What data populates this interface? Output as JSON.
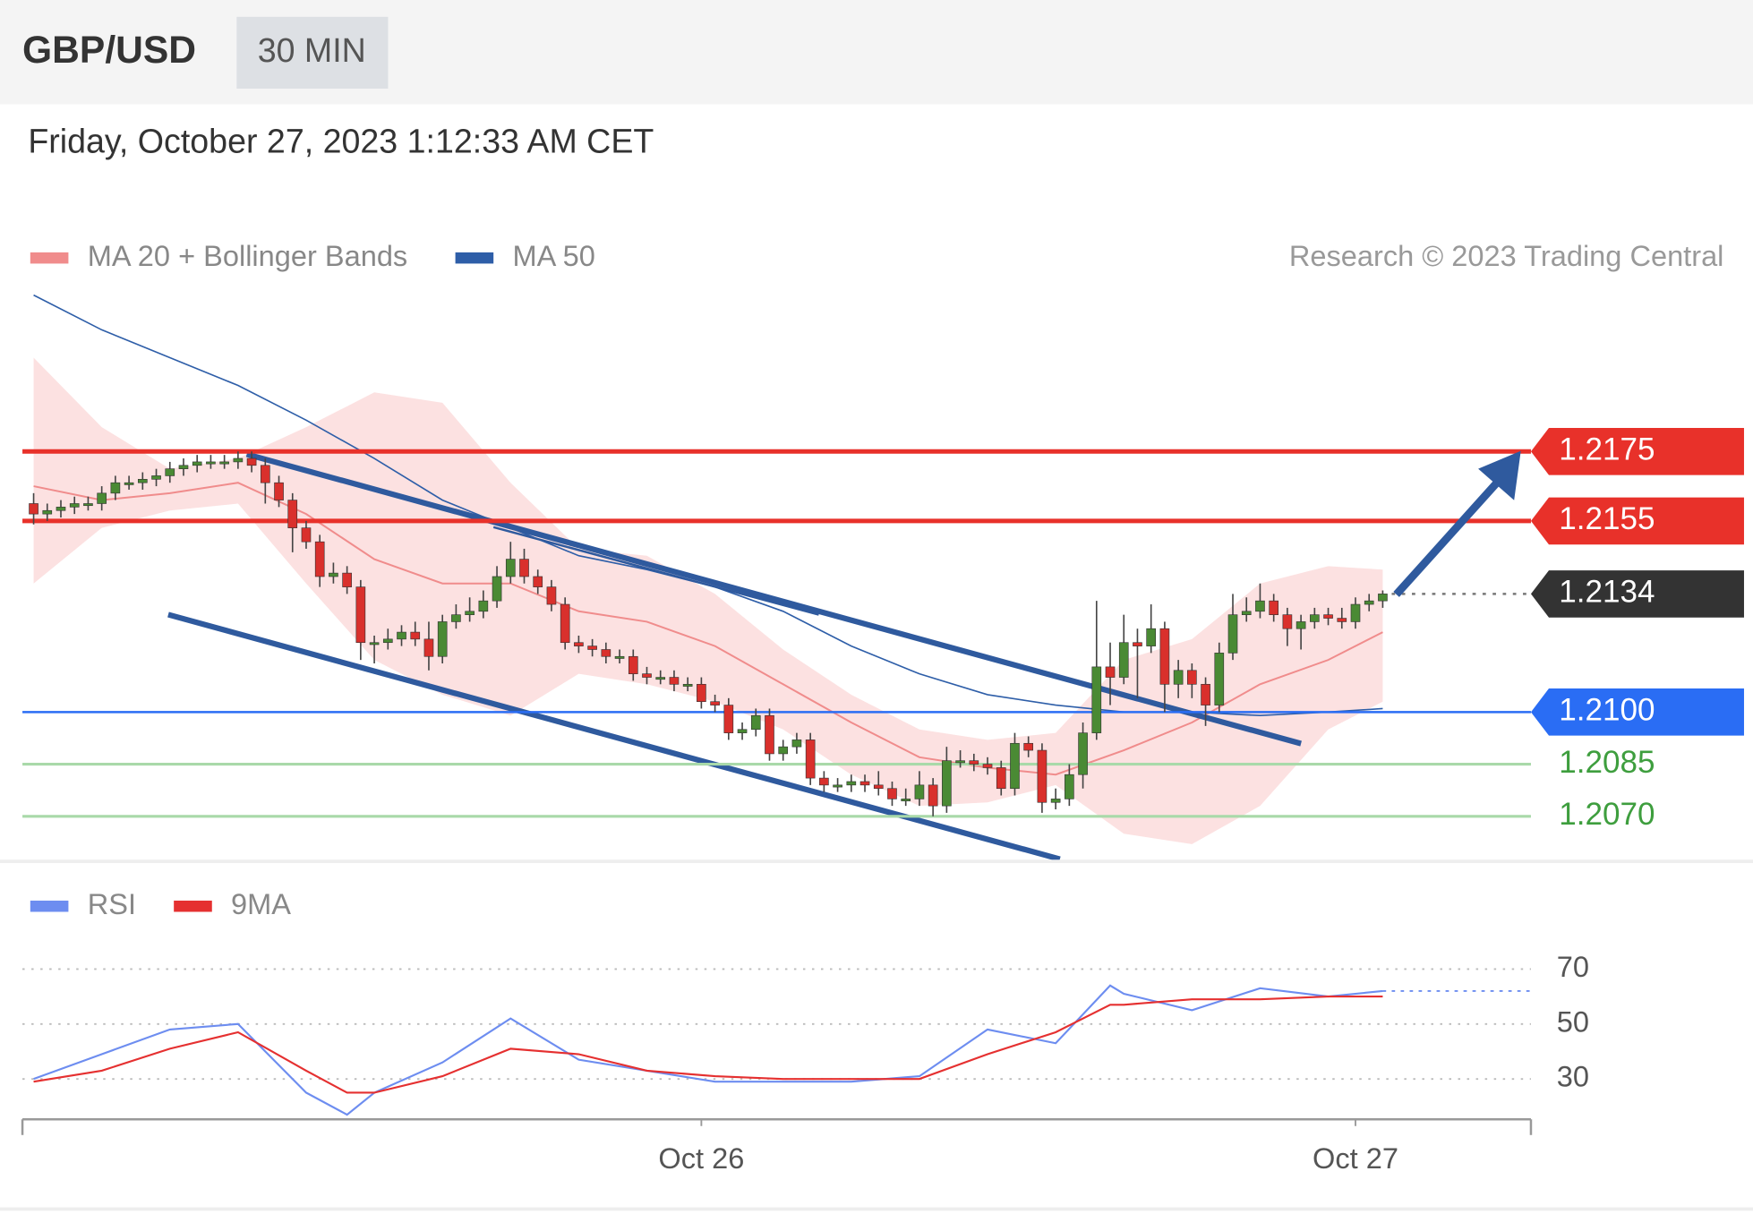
{
  "chart_data": [
    {
      "type": "candlestick",
      "title": "GBP/USD",
      "interval": "30 MIN",
      "subtitle": "Friday, October 27, 2023 1:12:33 AM CET",
      "source": "Research © 2023 Trading Central",
      "up_color": "#4a8a34",
      "down_color": "#d9302c",
      "xlim": [
        -0.5,
        110.5
      ],
      "ylim": [
        1.2058,
        1.2221
      ],
      "candles": [
        [
          1.216,
          1.2163,
          1.2154,
          1.2157
        ],
        [
          1.2157,
          1.216,
          1.2155,
          1.2158
        ],
        [
          1.2158,
          1.2161,
          1.2156,
          1.2159
        ],
        [
          1.2159,
          1.2162,
          1.2157,
          1.216
        ],
        [
          1.216,
          1.2162,
          1.2158,
          1.216
        ],
        [
          1.216,
          1.2165,
          1.2158,
          1.2163
        ],
        [
          1.2163,
          1.2168,
          1.2161,
          1.2166
        ],
        [
          1.2166,
          1.2168,
          1.2164,
          1.2166
        ],
        [
          1.2166,
          1.2169,
          1.2164,
          1.2167
        ],
        [
          1.2167,
          1.217,
          1.2165,
          1.2168
        ],
        [
          1.2168,
          1.2172,
          1.2166,
          1.217
        ],
        [
          1.217,
          1.2173,
          1.2168,
          1.2171
        ],
        [
          1.2171,
          1.2174,
          1.2169,
          1.2172
        ],
        [
          1.2172,
          1.2174,
          1.217,
          1.2172
        ],
        [
          1.2172,
          1.2174,
          1.217,
          1.2172
        ],
        [
          1.2172,
          1.2175,
          1.217,
          1.2173
        ],
        [
          1.2173,
          1.2175,
          1.2169,
          1.2171
        ],
        [
          1.2171,
          1.2173,
          1.216,
          1.2166
        ],
        [
          1.2166,
          1.2168,
          1.2159,
          1.2161
        ],
        [
          1.2161,
          1.2163,
          1.2146,
          1.2153
        ],
        [
          1.2153,
          1.2155,
          1.2147,
          1.2149
        ],
        [
          1.2149,
          1.2151,
          1.2136,
          1.2139
        ],
        [
          1.2139,
          1.2143,
          1.2137,
          1.214
        ],
        [
          1.214,
          1.2142,
          1.2134,
          1.2136
        ],
        [
          1.2136,
          1.2138,
          1.2115,
          1.212
        ],
        [
          1.212,
          1.2122,
          1.2114,
          1.212
        ],
        [
          1.212,
          1.2124,
          1.2118,
          1.2121
        ],
        [
          1.2121,
          1.2125,
          1.2119,
          1.2123
        ],
        [
          1.2123,
          1.2126,
          1.2119,
          1.2121
        ],
        [
          1.2121,
          1.2126,
          1.2112,
          1.2116
        ],
        [
          1.2116,
          1.2128,
          1.2114,
          1.2126
        ],
        [
          1.2126,
          1.2131,
          1.2124,
          1.2128
        ],
        [
          1.2128,
          1.2133,
          1.2126,
          1.2129
        ],
        [
          1.2129,
          1.2135,
          1.2127,
          1.2132
        ],
        [
          1.2132,
          1.2142,
          1.213,
          1.2139
        ],
        [
          1.2139,
          1.2149,
          1.2137,
          1.2144
        ],
        [
          1.2144,
          1.2147,
          1.2137,
          1.2139
        ],
        [
          1.2139,
          1.2141,
          1.2134,
          1.2136
        ],
        [
          1.2136,
          1.2138,
          1.2129,
          1.2131
        ],
        [
          1.2131,
          1.2133,
          1.2118,
          1.212
        ],
        [
          1.212,
          1.2122,
          1.2117,
          1.2119
        ],
        [
          1.2119,
          1.2121,
          1.2116,
          1.2118
        ],
        [
          1.2118,
          1.212,
          1.2114,
          1.2116
        ],
        [
          1.2116,
          1.2118,
          1.2114,
          1.2116
        ],
        [
          1.2116,
          1.2118,
          1.2109,
          1.2111
        ],
        [
          1.2111,
          1.2113,
          1.2108,
          1.211
        ],
        [
          1.211,
          1.2112,
          1.2108,
          1.211
        ],
        [
          1.211,
          1.2112,
          1.2106,
          1.2108
        ],
        [
          1.2108,
          1.211,
          1.2106,
          1.2108
        ],
        [
          1.2108,
          1.211,
          1.2101,
          1.2103
        ],
        [
          1.2103,
          1.2105,
          1.21,
          1.2102
        ],
        [
          1.2102,
          1.2104,
          1.2092,
          1.2094
        ],
        [
          1.2094,
          1.2097,
          1.2092,
          1.2095
        ],
        [
          1.2095,
          1.2101,
          1.2093,
          1.2099
        ],
        [
          1.2099,
          1.2101,
          1.2086,
          1.2088
        ],
        [
          1.2088,
          1.2092,
          1.2086,
          1.209
        ],
        [
          1.209,
          1.2094,
          1.2088,
          1.2092
        ],
        [
          1.2092,
          1.2094,
          1.2079,
          1.2081
        ],
        [
          1.2081,
          1.2083,
          1.2077,
          1.2079
        ],
        [
          1.2079,
          1.2081,
          1.2077,
          1.2079
        ],
        [
          1.2079,
          1.2082,
          1.2077,
          1.208
        ],
        [
          1.208,
          1.2082,
          1.2077,
          1.2079
        ],
        [
          1.2079,
          1.2083,
          1.2076,
          1.2078
        ],
        [
          1.2078,
          1.208,
          1.2073,
          1.2075
        ],
        [
          1.2075,
          1.2078,
          1.2073,
          1.2075
        ],
        [
          1.2075,
          1.2083,
          1.2073,
          1.2079
        ],
        [
          1.2079,
          1.2081,
          1.207,
          1.2073
        ],
        [
          1.2073,
          1.209,
          1.2071,
          1.2086
        ],
        [
          1.2086,
          1.2089,
          1.2084,
          1.2086
        ],
        [
          1.2086,
          1.2088,
          1.2083,
          1.2085
        ],
        [
          1.2085,
          1.2087,
          1.2082,
          1.2084
        ],
        [
          1.2084,
          1.2086,
          1.2076,
          1.2078
        ],
        [
          1.2078,
          1.2094,
          1.2076,
          1.2091
        ],
        [
          1.2091,
          1.2093,
          1.2087,
          1.2089
        ],
        [
          1.2089,
          1.2091,
          1.2071,
          1.2074
        ],
        [
          1.2074,
          1.2078,
          1.2072,
          1.2075
        ],
        [
          1.2075,
          1.2085,
          1.2073,
          1.2082
        ],
        [
          1.2082,
          1.2097,
          1.2078,
          1.2094
        ],
        [
          1.2094,
          1.2132,
          1.2092,
          1.2113
        ],
        [
          1.2113,
          1.212,
          1.2102,
          1.211
        ],
        [
          1.211,
          1.2128,
          1.2108,
          1.212
        ],
        [
          1.212,
          1.2124,
          1.2104,
          1.2119
        ],
        [
          1.2119,
          1.2131,
          1.2117,
          1.2124
        ],
        [
          1.2124,
          1.2126,
          1.21,
          1.2108
        ],
        [
          1.2108,
          1.2115,
          1.2104,
          1.2112
        ],
        [
          1.2112,
          1.2114,
          1.2104,
          1.2108
        ],
        [
          1.2108,
          1.211,
          1.2096,
          1.2102
        ],
        [
          1.2102,
          1.212,
          1.21,
          1.2117
        ],
        [
          1.2117,
          1.2134,
          1.2115,
          1.2128
        ],
        [
          1.2128,
          1.2133,
          1.2126,
          1.2129
        ],
        [
          1.2129,
          1.2137,
          1.2127,
          1.2132
        ],
        [
          1.2132,
          1.2134,
          1.2126,
          1.2128
        ],
        [
          1.2128,
          1.213,
          1.2119,
          1.2124
        ],
        [
          1.2124,
          1.2128,
          1.2118,
          1.2126
        ],
        [
          1.2126,
          1.213,
          1.2124,
          1.2128
        ],
        [
          1.2128,
          1.213,
          1.2125,
          1.2127
        ],
        [
          1.2127,
          1.213,
          1.2124,
          1.2126
        ],
        [
          1.2126,
          1.2133,
          1.2124,
          1.2131
        ],
        [
          1.2131,
          1.2134,
          1.2129,
          1.2132
        ],
        [
          1.2132,
          1.2135,
          1.213,
          1.2134
        ]
      ],
      "series": [
        {
          "name": "MA 20 + Bollinger Bands",
          "color": "#f08c8c",
          "band_color": "#fbdcdc",
          "x": [
            0,
            5,
            10,
            15,
            20,
            25,
            30,
            35,
            40,
            45,
            50,
            55,
            60,
            65,
            70,
            75,
            80,
            85,
            90,
            95,
            99
          ],
          "values": [
            1.2165,
            1.2161,
            1.2163,
            1.2166,
            1.2157,
            1.2144,
            1.2137,
            1.2137,
            1.2129,
            1.2126,
            1.2119,
            1.2108,
            1.2097,
            1.2087,
            1.2084,
            1.2082,
            1.2089,
            1.2097,
            1.2108,
            1.2115,
            1.2123
          ],
          "upper": [
            1.2202,
            1.2182,
            1.217,
            1.2173,
            1.2182,
            1.2192,
            1.2189,
            1.2166,
            1.2147,
            1.2145,
            1.2134,
            1.2118,
            1.2105,
            1.2095,
            1.2092,
            1.2094,
            1.2115,
            1.2121,
            1.2137,
            1.2142,
            1.2141
          ],
          "lower": [
            1.2137,
            1.2153,
            1.2158,
            1.216,
            1.2137,
            1.2115,
            1.2105,
            1.2099,
            1.2111,
            1.2108,
            1.2103,
            1.2095,
            1.2082,
            1.2073,
            1.2074,
            1.2079,
            1.2065,
            1.2062,
            1.2073,
            1.2095,
            1.2103
          ]
        },
        {
          "name": "MA 50",
          "color": "#2e5ea8",
          "x": [
            0,
            5,
            10,
            15,
            20,
            25,
            30,
            35,
            40,
            45,
            50,
            55,
            60,
            65,
            70,
            75,
            80,
            85,
            90,
            95,
            99
          ],
          "values": [
            1.222,
            1.221,
            1.2202,
            1.2194,
            1.2184,
            1.2173,
            1.2161,
            1.2153,
            1.2145,
            1.2141,
            1.2136,
            1.2129,
            1.2119,
            1.2111,
            1.2105,
            1.2102,
            1.21,
            1.21,
            1.2099,
            1.21,
            1.2101
          ]
        }
      ],
      "levels": [
        {
          "value": 1.2175,
          "kind": "resistance",
          "color": "#e8312a"
        },
        {
          "value": 1.2155,
          "kind": "resistance",
          "color": "#e8312a"
        },
        {
          "value": 1.2134,
          "kind": "last",
          "color": "#333333"
        },
        {
          "value": 1.21,
          "label": "1.2100",
          "kind": "pivot",
          "color": "#2a6df4"
        },
        {
          "value": 1.2085,
          "kind": "support",
          "color": "#3e9e3e"
        },
        {
          "value": 1.207,
          "label": "1.2070",
          "kind": "support",
          "color": "#3e9e3e"
        }
      ]
    },
    {
      "type": "line",
      "xlim": [
        -0.5,
        110.5
      ],
      "xticks": [
        {
          "value": 49,
          "label": "Oct 26"
        },
        {
          "value": 97,
          "label": "Oct 27"
        }
      ],
      "ylim": [
        16,
        82
      ],
      "yticks": [
        30,
        50,
        70
      ],
      "series": [
        {
          "name": "RSI",
          "color": "#6d8df0",
          "x": [
            0,
            5,
            10,
            15,
            20,
            23,
            25,
            30,
            35,
            40,
            45,
            50,
            55,
            60,
            65,
            70,
            75,
            79,
            80,
            85,
            90,
            95,
            99
          ],
          "values": [
            30,
            39,
            48,
            50,
            25,
            17,
            25,
            36,
            52,
            37,
            33,
            29,
            29,
            29,
            31,
            48,
            43,
            64,
            61,
            55,
            63,
            60,
            62
          ]
        },
        {
          "name": "9MA",
          "color": "#e53030",
          "x": [
            0,
            5,
            10,
            15,
            20,
            23,
            25,
            30,
            35,
            40,
            45,
            50,
            55,
            60,
            65,
            70,
            75,
            79,
            80,
            85,
            90,
            95,
            99
          ],
          "values": [
            29,
            33,
            41,
            47,
            33,
            25,
            25,
            31,
            41,
            39,
            33,
            31,
            30,
            30,
            30,
            39,
            47,
            57,
            57,
            59,
            59,
            60,
            60
          ]
        }
      ]
    }
  ]
}
